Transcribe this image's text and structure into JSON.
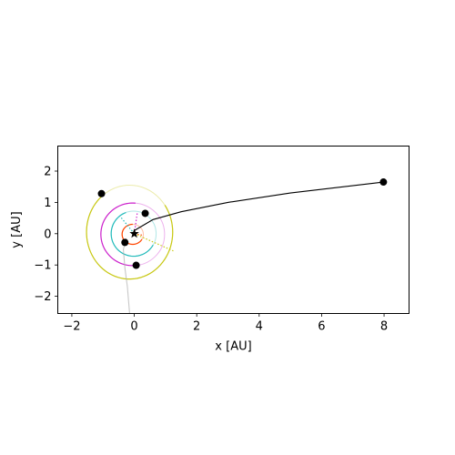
{
  "chart_data": {
    "type": "scatter",
    "xlabel": "x [AU]",
    "ylabel": "y [AU]",
    "xlim": [
      -2.45,
      8.8
    ],
    "ylim": [
      -2.55,
      2.8
    ],
    "aspect": "equal",
    "grid": false,
    "x_ticks": [
      {
        "value": -2,
        "label": "−2"
      },
      {
        "value": 0,
        "label": "0"
      },
      {
        "value": 2,
        "label": "2"
      },
      {
        "value": 4,
        "label": "4"
      },
      {
        "value": 6,
        "label": "6"
      },
      {
        "value": 8,
        "label": "8"
      }
    ],
    "y_ticks": [
      {
        "value": -2,
        "label": "−2"
      },
      {
        "value": -1,
        "label": "−1"
      },
      {
        "value": 0,
        "label": "0"
      },
      {
        "value": 1,
        "label": "1"
      },
      {
        "value": 2,
        "label": "2"
      }
    ],
    "star": {
      "x": 0.0,
      "y": 0.0,
      "marker": "star",
      "color": "#000000"
    },
    "bodies": [
      {
        "color": "#ff4500",
        "orbit": {
          "cx": -0.05,
          "cy": -0.02,
          "rx": 0.34,
          "ry": 0.32
        },
        "planet": null,
        "trail_start_deg": 90,
        "trail_end_deg": 330,
        "pericenter": {
          "x": 0.28,
          "y": -0.05
        }
      },
      {
        "color": "#22bbbb",
        "orbit": {
          "cx": -0.02,
          "cy": 0.0,
          "rx": 0.72,
          "ry": 0.72
        },
        "planet": {
          "x": -0.3,
          "y": -0.28
        },
        "trail_start_deg": 110,
        "trail_end_deg": 330,
        "pericenter": {
          "x": -0.45,
          "y": 0.55
        }
      },
      {
        "color": "#cc22cc",
        "orbit": {
          "cx": -0.05,
          "cy": -0.02,
          "rx": 1.02,
          "ry": 1.0
        },
        "planet": {
          "x": 0.06,
          "y": -1.01
        },
        "trail_start_deg": 85,
        "trail_end_deg": 280,
        "pericenter": {
          "x": 0.1,
          "y": 0.7
        }
      },
      {
        "color": "#c8c814",
        "orbit": {
          "cx": -0.15,
          "cy": 0.05,
          "rx": 1.38,
          "ry": 1.5
        },
        "planet": {
          "x": -1.05,
          "y": 1.28
        },
        "trail_start_deg": 130,
        "trail_end_deg": 395,
        "pericenter": {
          "x": 1.25,
          "y": -0.55
        }
      },
      {
        "color": "#000000",
        "orbit": null,
        "planet": {
          "x": 7.98,
          "y": 1.65
        },
        "trail_points": [
          [
            0.0,
            0.1
          ],
          [
            0.6,
            0.45
          ],
          [
            1.5,
            0.7
          ],
          [
            3.0,
            1.0
          ],
          [
            5.0,
            1.3
          ],
          [
            7.98,
            1.65
          ]
        ],
        "pericenter": null
      },
      {
        "color": "#b0b0b0",
        "orbit": null,
        "planet": null,
        "trail_points": [
          [
            -0.25,
            -0.15
          ],
          [
            -0.35,
            -0.5
          ],
          [
            -0.3,
            -1.1
          ],
          [
            -0.22,
            -1.7
          ],
          [
            -0.15,
            -2.55
          ]
        ],
        "pericenter": null
      },
      {
        "color": "#555555",
        "orbit": null,
        "planet": {
          "x": 0.35,
          "y": 0.65
        },
        "trail_points": [],
        "pericenter": null
      }
    ]
  }
}
